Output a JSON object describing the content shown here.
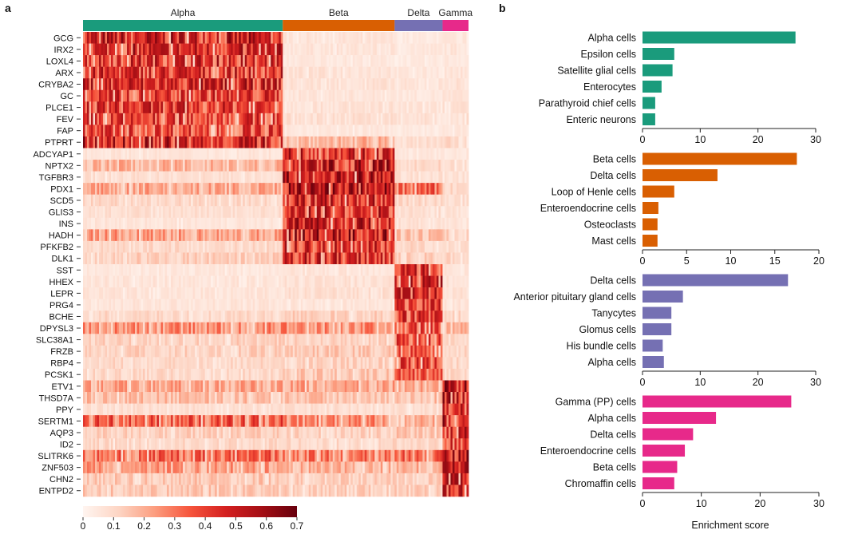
{
  "panel_labels": {
    "a": "a",
    "b": "b"
  },
  "chart_data": [
    {
      "type": "heatmap",
      "panel": "a",
      "column_groups": [
        {
          "name": "Alpha",
          "color": "#1a9b7c",
          "cells": 100
        },
        {
          "name": "Beta",
          "color": "#d95f02",
          "cells": 56
        },
        {
          "name": "Delta",
          "color": "#7570b3",
          "cells": 24
        },
        {
          "name": "Gamma",
          "color": "#e7298a",
          "cells": 13
        }
      ],
      "genes": [
        {
          "name": "GCG",
          "group": "Alpha",
          "levels": [
            0.46,
            0.06,
            0.04,
            0.05
          ]
        },
        {
          "name": "IRX2",
          "group": "Alpha",
          "levels": [
            0.44,
            0.06,
            0.05,
            0.06
          ]
        },
        {
          "name": "LOXL4",
          "group": "Alpha",
          "levels": [
            0.43,
            0.05,
            0.04,
            0.05
          ]
        },
        {
          "name": "ARX",
          "group": "Alpha",
          "levels": [
            0.42,
            0.07,
            0.05,
            0.06
          ]
        },
        {
          "name": "CRYBA2",
          "group": "Alpha",
          "levels": [
            0.44,
            0.07,
            0.06,
            0.07
          ]
        },
        {
          "name": "GC",
          "group": "Alpha",
          "levels": [
            0.4,
            0.06,
            0.05,
            0.06
          ]
        },
        {
          "name": "PLCE1",
          "group": "Alpha",
          "levels": [
            0.41,
            0.07,
            0.06,
            0.07
          ]
        },
        {
          "name": "FEV",
          "group": "Alpha",
          "levels": [
            0.39,
            0.08,
            0.07,
            0.08
          ]
        },
        {
          "name": "FAP",
          "group": "Alpha",
          "levels": [
            0.38,
            0.05,
            0.04,
            0.05
          ]
        },
        {
          "name": "PTPRT",
          "group": "Alpha",
          "levels": [
            0.47,
            0.18,
            0.08,
            0.1
          ]
        },
        {
          "name": "ADCYAP1",
          "group": "Beta",
          "levels": [
            0.06,
            0.45,
            0.05,
            0.05
          ]
        },
        {
          "name": "NPTX2",
          "group": "Beta",
          "levels": [
            0.18,
            0.47,
            0.1,
            0.08
          ]
        },
        {
          "name": "TGFBR3",
          "group": "Beta",
          "levels": [
            0.08,
            0.48,
            0.08,
            0.07
          ]
        },
        {
          "name": "PDX1",
          "group": "Beta",
          "levels": [
            0.2,
            0.5,
            0.3,
            0.1
          ]
        },
        {
          "name": "SCD5",
          "group": "Beta",
          "levels": [
            0.1,
            0.45,
            0.1,
            0.08
          ]
        },
        {
          "name": "GLIS3",
          "group": "Beta",
          "levels": [
            0.08,
            0.44,
            0.08,
            0.07
          ]
        },
        {
          "name": "INS",
          "group": "Beta",
          "levels": [
            0.06,
            0.46,
            0.07,
            0.06
          ]
        },
        {
          "name": "HADH",
          "group": "Beta",
          "levels": [
            0.22,
            0.5,
            0.15,
            0.12
          ]
        },
        {
          "name": "PFKFB2",
          "group": "Beta",
          "levels": [
            0.1,
            0.42,
            0.1,
            0.08
          ]
        },
        {
          "name": "DLK1",
          "group": "Beta",
          "levels": [
            0.12,
            0.44,
            0.12,
            0.1
          ]
        },
        {
          "name": "SST",
          "group": "Delta",
          "levels": [
            0.05,
            0.06,
            0.45,
            0.06
          ]
        },
        {
          "name": "HHEX",
          "group": "Delta",
          "levels": [
            0.06,
            0.07,
            0.44,
            0.07
          ]
        },
        {
          "name": "LEPR",
          "group": "Delta",
          "levels": [
            0.06,
            0.08,
            0.42,
            0.07
          ]
        },
        {
          "name": "PRG4",
          "group": "Delta",
          "levels": [
            0.06,
            0.06,
            0.38,
            0.06
          ]
        },
        {
          "name": "BCHE",
          "group": "Delta",
          "levels": [
            0.1,
            0.12,
            0.4,
            0.1
          ]
        },
        {
          "name": "DPYSL3",
          "group": "Delta",
          "levels": [
            0.24,
            0.24,
            0.36,
            0.18
          ]
        },
        {
          "name": "SLC38A1",
          "group": "Delta",
          "levels": [
            0.12,
            0.12,
            0.38,
            0.1
          ]
        },
        {
          "name": "FRZB",
          "group": "Delta",
          "levels": [
            0.12,
            0.14,
            0.34,
            0.1
          ]
        },
        {
          "name": "RBP4",
          "group": "Delta",
          "levels": [
            0.1,
            0.12,
            0.36,
            0.1
          ]
        },
        {
          "name": "PCSK1",
          "group": "Delta",
          "levels": [
            0.1,
            0.14,
            0.34,
            0.1
          ]
        },
        {
          "name": "ETV1",
          "group": "Gamma",
          "levels": [
            0.2,
            0.2,
            0.2,
            0.5
          ]
        },
        {
          "name": "THSD7A",
          "group": "Gamma",
          "levels": [
            0.16,
            0.16,
            0.16,
            0.46
          ]
        },
        {
          "name": "PPY",
          "group": "Gamma",
          "levels": [
            0.08,
            0.08,
            0.08,
            0.42
          ]
        },
        {
          "name": "SERTM1",
          "group": "Gamma",
          "levels": [
            0.32,
            0.24,
            0.18,
            0.48
          ]
        },
        {
          "name": "AQP3",
          "group": "Gamma",
          "levels": [
            0.12,
            0.12,
            0.14,
            0.44
          ]
        },
        {
          "name": "ID2",
          "group": "Gamma",
          "levels": [
            0.1,
            0.1,
            0.1,
            0.4
          ]
        },
        {
          "name": "SLITRK6",
          "group": "Gamma",
          "levels": [
            0.3,
            0.28,
            0.3,
            0.5
          ]
        },
        {
          "name": "ZNF503",
          "group": "Gamma",
          "levels": [
            0.22,
            0.18,
            0.18,
            0.48
          ]
        },
        {
          "name": "CHN2",
          "group": "Gamma",
          "levels": [
            0.14,
            0.12,
            0.12,
            0.44
          ]
        },
        {
          "name": "ENTPD2",
          "group": "Gamma",
          "levels": [
            0.14,
            0.12,
            0.12,
            0.42
          ]
        }
      ],
      "colorbar": {
        "min": 0,
        "max": 0.7,
        "ticks": [
          "0",
          "0.1",
          "0.2",
          "0.3",
          "0.4",
          "0.5",
          "0.6",
          "0.7"
        ],
        "low_color": "#fff5f0",
        "high_color": "#67000d"
      }
    },
    {
      "type": "bar",
      "orientation": "horizontal",
      "panel": "b",
      "xlabel": "Enrichment score",
      "groups": [
        {
          "color": "#1a9b7c",
          "xlim": [
            0,
            30
          ],
          "ticks": [
            "0",
            "10",
            "20",
            "30"
          ],
          "categories": [
            "Alpha cells",
            "Epsilon cells",
            "Satellite glial cells",
            "Enterocytes",
            "Parathyroid chief cells",
            "Enteric neurons"
          ],
          "values": [
            26.5,
            5.5,
            5.2,
            3.3,
            2.2,
            2.2
          ]
        },
        {
          "color": "#d95f02",
          "xlim": [
            0,
            20
          ],
          "ticks": [
            "0",
            "5",
            "10",
            "15",
            "20"
          ],
          "categories": [
            "Beta cells",
            "Delta cells",
            "Loop of Henle cells",
            "Enteroendocrine cells",
            "Osteoclasts",
            "Mast cells"
          ],
          "values": [
            17.5,
            8.5,
            3.6,
            1.8,
            1.7,
            1.7
          ]
        },
        {
          "color": "#7570b3",
          "xlim": [
            0,
            30
          ],
          "ticks": [
            "0",
            "10",
            "20",
            "30"
          ],
          "categories": [
            "Delta cells",
            "Anterior pituitary gland cells",
            "Tanycytes",
            "Glomus cells",
            "His bundle cells",
            "Alpha cells"
          ],
          "values": [
            25.2,
            7.0,
            5.0,
            5.0,
            3.5,
            3.7
          ]
        },
        {
          "color": "#e7298a",
          "xlim": [
            0,
            30
          ],
          "ticks": [
            "0",
            "10",
            "20",
            "30"
          ],
          "categories": [
            "Gamma (PP) cells",
            "Alpha cells",
            "Delta cells",
            "Enteroendocrine cells",
            "Beta cells",
            "Chromaffin cells"
          ],
          "values": [
            25.3,
            12.5,
            8.6,
            7.2,
            5.9,
            5.4
          ]
        }
      ]
    }
  ]
}
